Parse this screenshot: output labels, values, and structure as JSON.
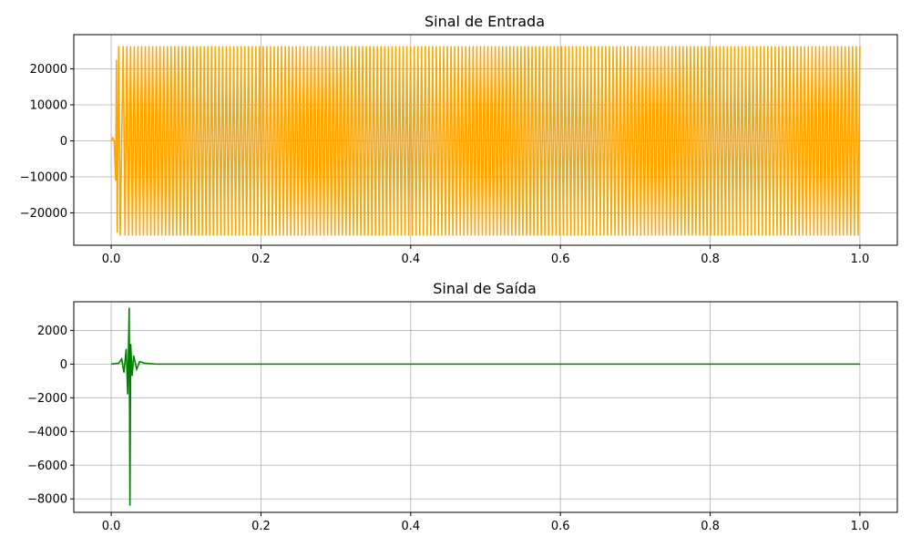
{
  "chart_data": [
    {
      "type": "line",
      "title": "Sinal de Entrada",
      "xlabel": "",
      "ylabel": "",
      "xlim": [
        -0.05,
        1.05
      ],
      "ylim": [
        -29000,
        29500
      ],
      "xticks": [
        0.0,
        0.2,
        0.4,
        0.6,
        0.8,
        1.0
      ],
      "xtick_labels": [
        "0.0",
        "0.2",
        "0.4",
        "0.6",
        "0.8",
        "1.0"
      ],
      "yticks": [
        -20000,
        -10000,
        0,
        10000,
        20000
      ],
      "ytick_labels": [
        "−20000",
        "−10000",
        "0",
        "10000",
        "20000"
      ],
      "grid": true,
      "color": "#ffa500",
      "series": [
        {
          "x": [
            0.0,
            0.002,
            0.004,
            0.006,
            0.007,
            0.008,
            0.01,
            0.012,
            0.016,
            1.0
          ],
          "y": [
            0,
            800,
            0,
            -11000,
            22500,
            -25500,
            26300,
            -26300,
            26300,
            -26300
          ],
          "note_steady_cycles": 200,
          "amplitude": 26300
        }
      ]
    },
    {
      "type": "line",
      "title": "Sinal de Saída",
      "xlabel": "",
      "ylabel": "",
      "xlim": [
        -0.05,
        1.05
      ],
      "ylim": [
        -8800,
        3700
      ],
      "xticks": [
        0.0,
        0.2,
        0.4,
        0.6,
        0.8,
        1.0
      ],
      "xtick_labels": [
        "0.0",
        "0.2",
        "0.4",
        "0.6",
        "0.8",
        "1.0"
      ],
      "yticks": [
        -8000,
        -6000,
        -4000,
        -2000,
        0,
        2000
      ],
      "ytick_labels": [
        "−8000",
        "−6000",
        "−4000",
        "−2000",
        "0",
        "2000"
      ],
      "grid": true,
      "color": "#008000",
      "series": [
        {
          "x": [
            0.0,
            0.01,
            0.014,
            0.017,
            0.02,
            0.022,
            0.024,
            0.025,
            0.026,
            0.028,
            0.03,
            0.034,
            0.038,
            0.045,
            0.06,
            1.0
          ],
          "y": [
            0,
            50,
            300,
            -500,
            900,
            -1800,
            3350,
            -8400,
            1200,
            -700,
            500,
            -300,
            150,
            50,
            0,
            0
          ]
        }
      ]
    }
  ]
}
